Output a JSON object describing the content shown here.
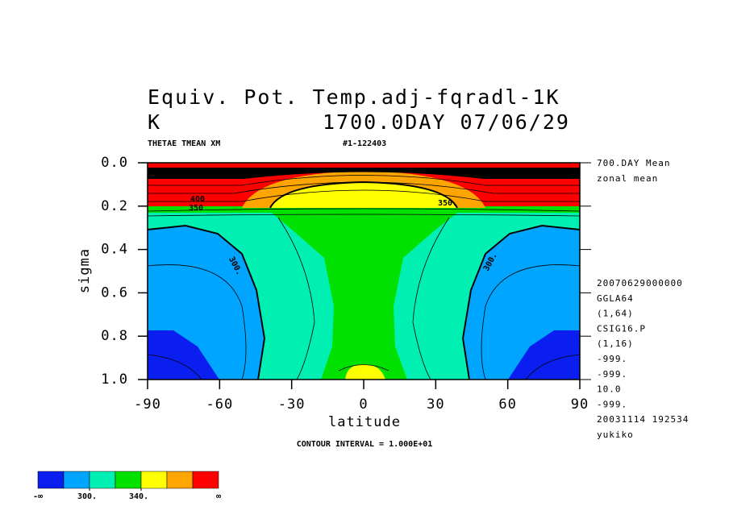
{
  "chart_data": {
    "type": "contour",
    "title": "Equiv. Pot. Temp.adj-fqradl-1K",
    "subtitle_left": "K",
    "subtitle_right": "1700.0DAY 07/06/29",
    "variable": "THETAE TMEAN XM",
    "run_id": "#1-122403",
    "xlabel": "latitude",
    "ylabel": "sigma",
    "xlim": [
      -90,
      90
    ],
    "xticks": [
      -90,
      -60,
      -30,
      0,
      30,
      60,
      90
    ],
    "ylim": [
      0,
      1
    ],
    "y_reversed": true,
    "yticks": [
      {
        "value": 0,
        "label": "0.0"
      },
      0.2,
      0.4,
      0.6,
      0.8,
      {
        "value": 1,
        "label": "1.0"
      }
    ],
    "side_info": [
      "700.DAY Mean",
      "zonal mean"
    ],
    "meta_info": [
      "20070629000000",
      "GGLA64",
      "(1,64)",
      "CSIG16.P",
      "(1,16)",
      "-999.",
      "-999.",
      "10.0",
      "-999.",
      "20031114 192534",
      "yukiko"
    ],
    "contour_interval": "CONTOUR INTERVAL = 1.000E+01",
    "contour_labels": [
      {
        "value": 300,
        "label": "300."
      },
      {
        "value": 300,
        "label": "300."
      },
      {
        "value": 350,
        "label": "350."
      },
      {
        "value": 350,
        "label": "350"
      },
      {
        "value": 400,
        "label": "400"
      }
    ],
    "colorbar": {
      "colors": [
        "#0a1ef0",
        "#00a5ff",
        "#00f0b4",
        "#00e100",
        "#ffff00",
        "#ffa500",
        "#ff0000"
      ],
      "lim": [
        260,
        400
      ],
      "ticks": [
        {
          "value": 300,
          "label": "300."
        },
        {
          "value": 340,
          "label": "340."
        }
      ],
      "low_label": "-∞",
      "high_label": "∞"
    }
  }
}
